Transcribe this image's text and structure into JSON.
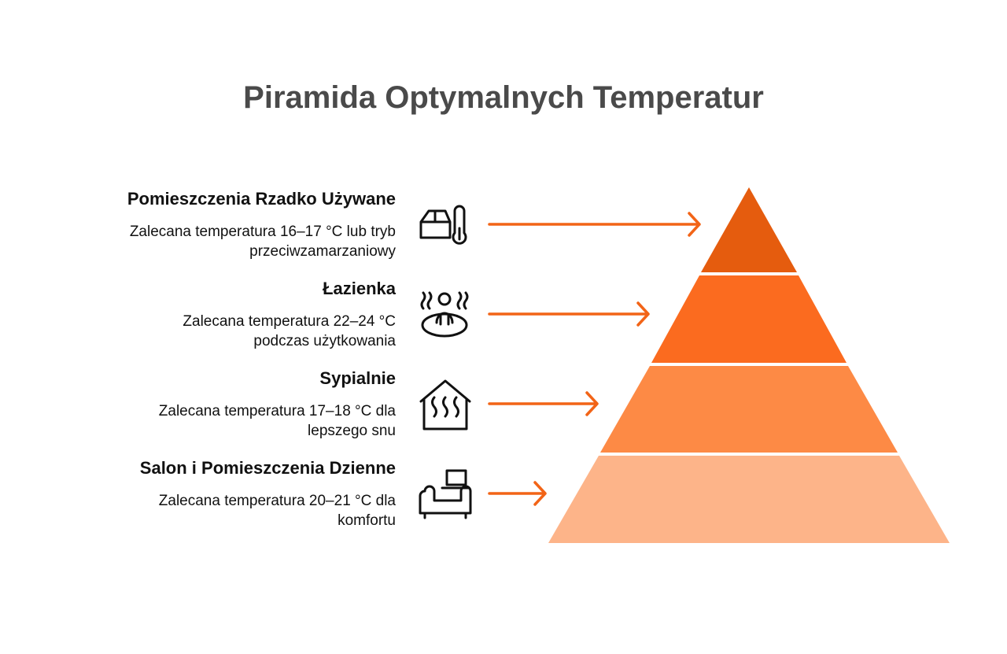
{
  "title": "Piramida Optymalnych Temperatur",
  "levels": [
    {
      "title": "Pomieszczenia Rzadko Używane",
      "description": [
        "Zalecana temperatura 16–17 °C lub tryb",
        "przeciwzamarzaniowy"
      ]
    },
    {
      "title": "Łazienka",
      "description": [
        "Zalecana temperatura 22–24 °C",
        "podczas użytkowania"
      ]
    },
    {
      "title": "Sypialnie",
      "description": [
        "Zalecana temperatura 17–18 °C dla",
        "lepszego snu"
      ]
    },
    {
      "title": "Salon i Pomieszczenia Dzienne",
      "description": [
        "Zalecana temperatura 20–21 °C dla",
        "komfortu"
      ]
    }
  ]
}
